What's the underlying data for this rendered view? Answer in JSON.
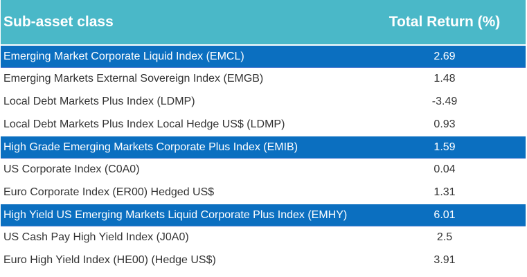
{
  "header": {
    "col_name": "Sub-asset class",
    "col_value": "Total Return (%)"
  },
  "colors": {
    "header_bg": "#4ab8c8",
    "highlight_bg": "#0b6fc0"
  },
  "rows": [
    {
      "name": "Emerging Market Corporate Liquid Index (EMCL)",
      "value": "2.69",
      "highlight": true
    },
    {
      "name": "Emerging Markets External Sovereign Index (EMGB)",
      "value": "1.48",
      "highlight": false
    },
    {
      "name": "Local Debt Markets Plus Index (LDMP)",
      "value": "-3.49",
      "highlight": false
    },
    {
      "name": "Local Debt Markets Plus Index  Local Hedge US$ (LDMP)",
      "value": "0.93",
      "highlight": false
    },
    {
      "name": "High Grade Emerging Markets Corporate Plus Index  (EMIB)",
      "value": "1.59",
      "highlight": true
    },
    {
      "name": "US Corporate Index (C0A0)",
      "value": "0.04",
      "highlight": false
    },
    {
      "name": "Euro Corporate Index (ER00) Hedged US$",
      "value": "1.31",
      "highlight": false
    },
    {
      "name": "High Yield US Emerging Markets Liquid Corporate Plus Index (EMHY)",
      "value": "6.01",
      "highlight": true
    },
    {
      "name": "US Cash Pay High Yield Index (J0A0)",
      "value": "2.5",
      "highlight": false
    },
    {
      "name": "Euro High Yield Index (HE00) (Hedge US$)",
      "value": "3.91",
      "highlight": false
    }
  ]
}
